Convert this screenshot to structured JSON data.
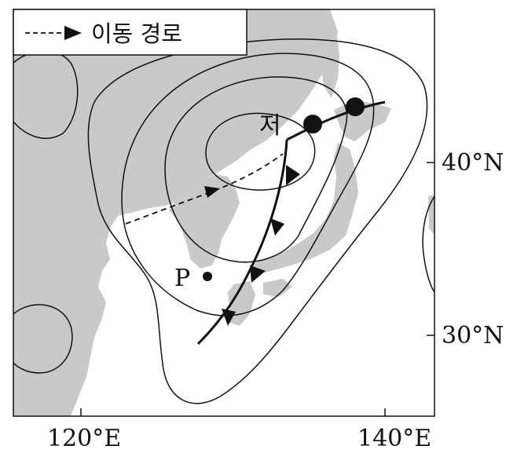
{
  "legend": {
    "label": "이동 경로"
  },
  "labels": {
    "low": "저",
    "point": "P"
  },
  "axes": {
    "latitude": [
      "40°N",
      "30°N"
    ],
    "longitude": [
      "120°E",
      "140°E"
    ]
  },
  "colors": {
    "land": "#c9c9c9",
    "sea": "#ffffff",
    "line": "#111111"
  },
  "symbols": {
    "front": "occluded-stationary-front",
    "track": "dashed-arrow-path"
  }
}
